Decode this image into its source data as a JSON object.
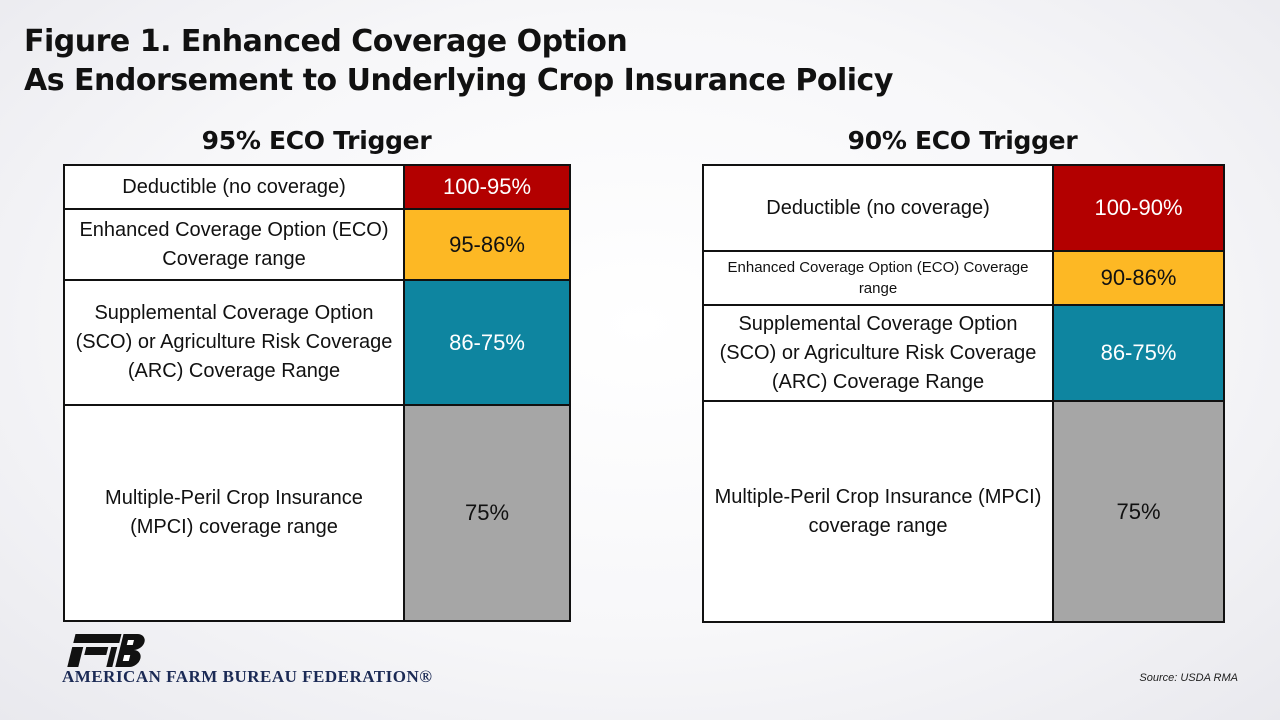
{
  "title": {
    "line1": "Figure 1. Enhanced Coverage Option",
    "line2": "As Endorsement to Underlying Crop Insurance Policy"
  },
  "colors": {
    "deductible": "#b30000",
    "eco": "#fdb824",
    "sco_arc": "#0e85a0",
    "mpci": "#a6a6a6"
  },
  "panels": [
    {
      "heading": "95% ECO Trigger",
      "rows": [
        {
          "label": "Deductible (no coverage)",
          "value": "100-95%"
        },
        {
          "label": "Enhanced Coverage Option (ECO) Coverage range",
          "value": "95-86%"
        },
        {
          "label": "Supplemental Coverage Option (SCO) or Agriculture Risk Coverage (ARC) Coverage Range",
          "value": "86-75%"
        },
        {
          "label": "Multiple-Peril Crop Insurance (MPCI) coverage range",
          "value": "75%"
        }
      ]
    },
    {
      "heading": "90% ECO Trigger",
      "rows": [
        {
          "label": "Deductible (no coverage)",
          "value": "100-90%"
        },
        {
          "label": "Enhanced Coverage Option (ECO) Coverage range",
          "value": "90-86%"
        },
        {
          "label": "Supplemental Coverage Option (SCO) or Agriculture Risk Coverage (ARC) Coverage Range",
          "value": "86-75%"
        },
        {
          "label": "Multiple-Peril Crop Insurance (MPCI) coverage range",
          "value": "75%"
        }
      ]
    }
  ],
  "footer": {
    "organization": "AMERICAN FARM BUREAU FEDERATION®",
    "source": "Source:  USDA  RMA"
  },
  "logo_icon": "fb-logo-icon"
}
